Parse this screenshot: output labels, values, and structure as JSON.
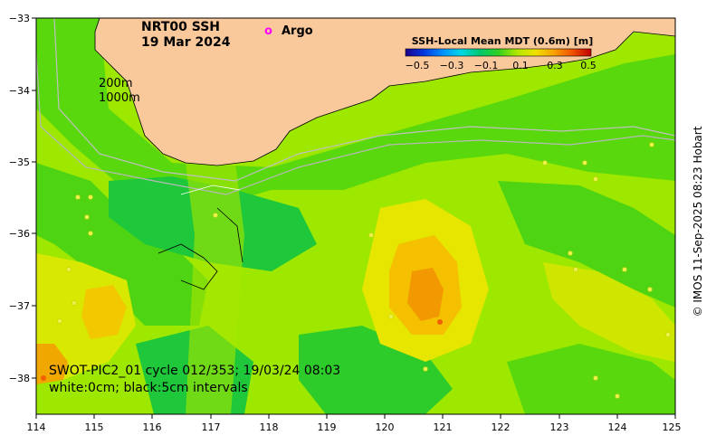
{
  "title": {
    "product": "NRT00 SSH",
    "date": "19 Mar 2024"
  },
  "legend_argo": {
    "marker": "o",
    "label": "Argo"
  },
  "colorbar": {
    "title": "SSH-Local Mean MDT (0.6m) [m]",
    "ticks": [
      "−0.5",
      "−0.3",
      "−0.1",
      "0.1",
      "0.3",
      "0.5"
    ],
    "colors": [
      "#20008c",
      "#0038e0",
      "#0090ff",
      "#00d8e8",
      "#00c870",
      "#30d020",
      "#b0e800",
      "#f0e000",
      "#f8a000",
      "#f05000",
      "#c00000"
    ]
  },
  "depth_labels": {
    "shallow": "200m",
    "deep": "1000m"
  },
  "axes": {
    "x_ticks": [
      "114",
      "115",
      "116",
      "117",
      "118",
      "119",
      "120",
      "121",
      "122",
      "123",
      "124",
      "125"
    ],
    "y_ticks": [
      "−33",
      "−34",
      "−35",
      "−36",
      "−37",
      "−38"
    ]
  },
  "annotation": {
    "line1": "SWOT-PIC2_01 cycle 012/353; 19/03/24 08:03",
    "line2": "white:0cm; black:5cm intervals"
  },
  "credit": "© IMOS 11-Sep-2025 08:23 Hobart",
  "colors": {
    "land": "#f9c89b",
    "base_field": "#9ee800",
    "argo_marker": "#ff00ff"
  }
}
